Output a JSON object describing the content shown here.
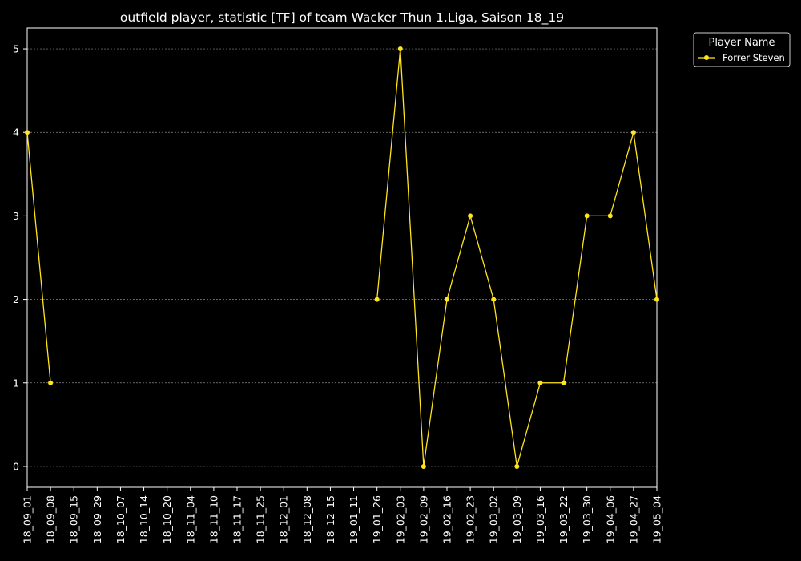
{
  "chart_data": {
    "type": "line",
    "title": "outfield player, statistic [TF] of team Wacker Thun 1.Liga, Saison 18_19",
    "xlabel": "",
    "ylabel": "",
    "categories": [
      "18_09_01",
      "18_09_08",
      "18_09_15",
      "18_09_29",
      "18_10_07",
      "18_10_14",
      "18_10_20",
      "18_11_04",
      "18_11_10",
      "18_11_17",
      "18_11_25",
      "18_12_01",
      "18_12_08",
      "18_12_15",
      "19_01_11",
      "19_01_26",
      "19_02_03",
      "19_02_09",
      "19_02_16",
      "19_02_23",
      "19_03_02",
      "19_03_09",
      "19_03_16",
      "19_03_22",
      "19_03_30",
      "19_04_06",
      "19_04_27",
      "19_05_04"
    ],
    "yticks": [
      0,
      1,
      2,
      3,
      4,
      5
    ],
    "ylim": [
      -0.25,
      5.25
    ],
    "grid": "horizontal dotted",
    "legend_title": "Player Name",
    "legend_position": "outside-top-right",
    "series": [
      {
        "name": "Forrer Steven",
        "color": "#ffe51a",
        "values": [
          4,
          1,
          null,
          null,
          null,
          null,
          null,
          null,
          null,
          null,
          null,
          null,
          null,
          null,
          null,
          2,
          5,
          0,
          2,
          3,
          2,
          0,
          1,
          1,
          3,
          3,
          4,
          2
        ]
      }
    ]
  }
}
